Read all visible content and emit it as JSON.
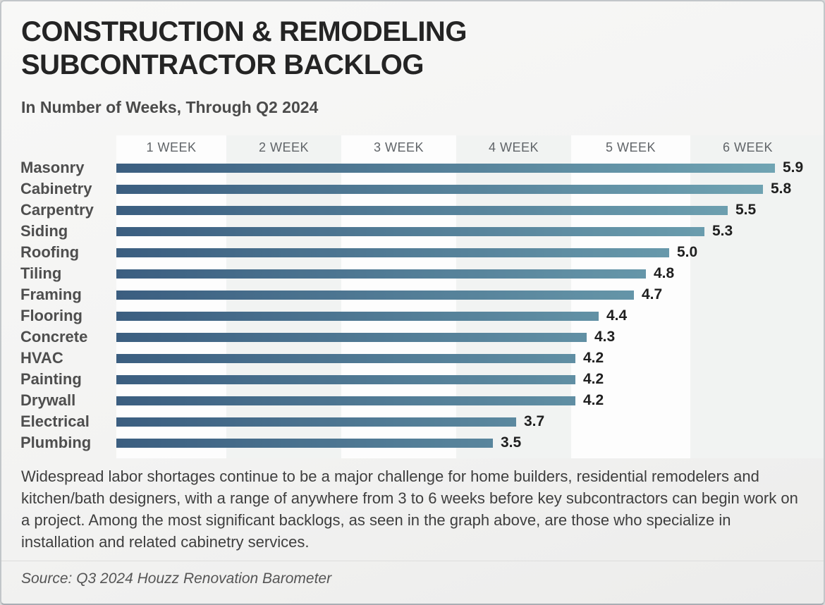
{
  "title": {
    "line1": "CONSTRUCTION & REMODELING",
    "line2": "SUBCONTRACTOR BACKLOG"
  },
  "subtitle": "In Number of Weeks, Through Q2 2024",
  "chart_data": {
    "type": "bar",
    "orientation": "horizontal",
    "title": "Construction & Remodeling Subcontractor Backlog",
    "subtitle": "In Number of Weeks, Through Q2 2024",
    "unit": "weeks",
    "xlim": [
      0,
      6
    ],
    "x_tick_labels": [
      "1 WEEK",
      "2 WEEK",
      "3 WEEK",
      "4 WEEK",
      "5 WEEK",
      "6 WEEK"
    ],
    "categories": [
      "Masonry",
      "Cabinetry",
      "Carpentry",
      "Siding",
      "Roofing",
      "Tiling",
      "Framing",
      "Flooring",
      "Concrete",
      "HVAC",
      "Painting",
      "Drywall",
      "Electrical",
      "Plumbing"
    ],
    "values": [
      5.9,
      5.8,
      5.5,
      5.3,
      5.0,
      4.8,
      4.7,
      4.4,
      4.3,
      4.2,
      4.2,
      4.2,
      3.7,
      3.5
    ],
    "value_label_decimals": 1,
    "legend": "none",
    "grid": "alternating vertical week bands",
    "colors": {
      "bar_gradient_start": "#3b5e80",
      "bar_gradient_end": "#70a4b3",
      "band_light": "#fdfdfd",
      "band_shaded": "#f1f3f2",
      "value_label": "#1f1f1f",
      "category_label": "#4e4e4e",
      "week_header": "#606468"
    }
  },
  "body_paragraph": "Widespread labor shortages continue to be a major challenge for home builders, residential remodelers and kitchen/bath designers, with a range of anywhere from 3 to 6 weeks before key subcontractors can begin work on a project. Among the most significant backlogs, as seen in the graph above, are those who specialize in installation and related cabinetry services.",
  "source": "Source: Q3 2024 Houzz Renovation Barometer"
}
